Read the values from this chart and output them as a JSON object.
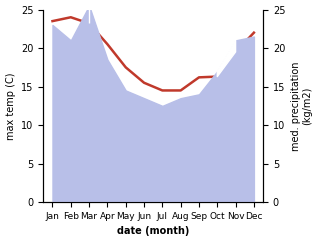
{
  "months": [
    "Jan",
    "Feb",
    "Mar",
    "Apr",
    "May",
    "Jun",
    "Jul",
    "Aug",
    "Sep",
    "Oct",
    "Nov",
    "Dec"
  ],
  "x": [
    0,
    1,
    2,
    3,
    4,
    5,
    6,
    7,
    8,
    9,
    10,
    11
  ],
  "temperature": [
    23.5,
    24.0,
    23.2,
    20.5,
    17.5,
    15.5,
    14.5,
    14.5,
    16.2,
    16.3,
    19.5,
    22.0
  ],
  "precipitation": [
    23.0,
    21.0,
    25.5,
    18.5,
    14.5,
    13.5,
    12.5,
    13.5,
    14.0,
    17.0,
    21.0,
    21.5
  ],
  "temp_color": "#c0392b",
  "precip_fill_color": "#b8bfe8",
  "white_color": "#ffffff",
  "ylim_left": [
    0,
    25
  ],
  "ylim_right": [
    0,
    25
  ],
  "xlabel": "date (month)",
  "ylabel_left": "max temp (C)",
  "ylabel_right": "med. precipitation\n(kg/m2)",
  "bg_color": "#ffffff"
}
